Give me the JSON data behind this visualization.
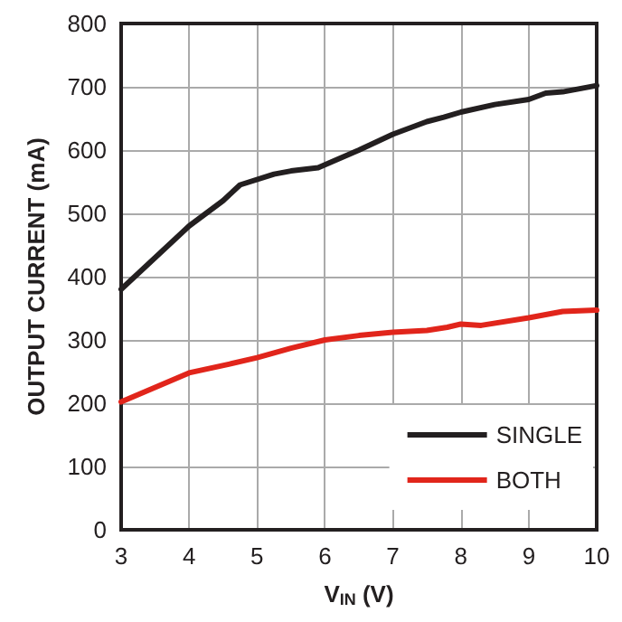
{
  "chart_data": {
    "type": "line",
    "xlabel": "V$_{IN}$ (V)",
    "ylabel": "OUTPUT CURRENT (mA)",
    "xlim": [
      3,
      10
    ],
    "xticks": [
      3,
      4,
      5,
      6,
      7,
      8,
      9,
      10
    ],
    "ylim": [
      0,
      800
    ],
    "yticks": [
      0,
      100,
      200,
      300,
      400,
      500,
      600,
      700,
      800
    ],
    "grid": true,
    "legend": "bottom right",
    "marker": "none",
    "line_style": "solid",
    "series": [
      {
        "name": "SINGLE",
        "color": "#231f20",
        "x": [
          3,
          4,
          4.5,
          4.75,
          5.25,
          5.5,
          5.9,
          6.5,
          7,
          7.5,
          7.75,
          8,
          8.5,
          9,
          9.25,
          9.5,
          10
        ],
        "values": [
          380,
          480,
          520,
          545,
          562,
          567,
          572,
          600,
          625,
          645,
          652,
          660,
          672,
          680,
          690,
          692,
          702
        ]
      },
      {
        "name": "BOTH",
        "color": "#e1251b",
        "x": [
          3,
          4,
          4.6,
          5,
          5.5,
          6,
          6.5,
          7,
          7.5,
          7.8,
          8,
          8.3,
          9,
          9.5,
          10
        ],
        "values": [
          202,
          248,
          262,
          272,
          287,
          300,
          307,
          312,
          315,
          320,
          325,
          323,
          335,
          345,
          347
        ]
      }
    ]
  }
}
